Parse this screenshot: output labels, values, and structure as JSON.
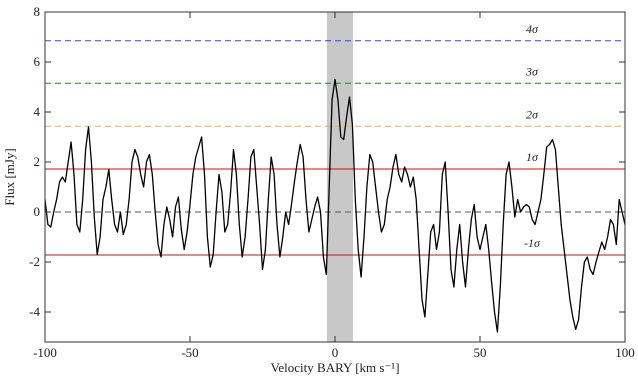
{
  "chart_data": {
    "type": "line",
    "x_label": "Velocity BARY [km s⁻¹]",
    "y_label": "Flux [mJy]",
    "xlim": [
      -100,
      100
    ],
    "ylim": [
      -5.2,
      8
    ],
    "xticks": [
      -100,
      -50,
      0,
      50,
      100
    ],
    "yticks": [
      -4,
      -2,
      0,
      2,
      4,
      6,
      8
    ],
    "shaded_band": {
      "range": [
        -2.8,
        6.2
      ],
      "color": "#c8c8c8"
    },
    "reference_lines": [
      {
        "label": "4σ",
        "value": 6.85,
        "color": "#3b3bff",
        "dashed": true
      },
      {
        "label": "3σ",
        "value": 5.15,
        "color": "#1e8a1e",
        "dashed": true
      },
      {
        "label": "2σ",
        "value": 3.43,
        "color": "#f2b233",
        "dashed": true
      },
      {
        "label": "1σ",
        "value": 1.72,
        "color": "#cc1111",
        "dashed": false
      },
      {
        "value": 0,
        "color": "#555555",
        "dashed": true
      },
      {
        "label": "-1σ",
        "value": -1.72,
        "color": "#cc1111",
        "dashed": false
      }
    ],
    "series": [
      {
        "color": "#000000",
        "x": [
          -100,
          -99,
          -98,
          -97,
          -96,
          -95,
          -94,
          -93,
          -92,
          -91,
          -90,
          -89,
          -88,
          -87,
          -86,
          -85,
          -84,
          -83,
          -82,
          -81,
          -80,
          -79,
          -78,
          -77,
          -76,
          -75,
          -74,
          -73,
          -72,
          -71,
          -70,
          -69,
          -68,
          -67,
          -66,
          -65,
          -64,
          -63,
          -62,
          -61,
          -60,
          -59,
          -58,
          -57,
          -56,
          -55,
          -54,
          -53,
          -52,
          -51,
          -50,
          -49,
          -48,
          -47,
          -46,
          -45,
          -44,
          -43,
          -42,
          -41,
          -40,
          -39,
          -38,
          -37,
          -36,
          -35,
          -34,
          -33,
          -32,
          -31,
          -30,
          -29,
          -28,
          -27,
          -26,
          -25,
          -24,
          -23,
          -22,
          -21,
          -20,
          -19,
          -18,
          -17,
          -16,
          -15,
          -14,
          -13,
          -12,
          -11,
          -10,
          -9,
          -8,
          -7,
          -6,
          -5,
          -4,
          -3,
          -2,
          -1,
          0,
          1,
          2,
          3,
          4,
          5,
          6,
          7,
          8,
          9,
          10,
          11,
          12,
          13,
          14,
          15,
          16,
          17,
          18,
          19,
          20,
          21,
          22,
          23,
          24,
          25,
          26,
          27,
          28,
          29,
          30,
          31,
          32,
          33,
          34,
          35,
          36,
          37,
          38,
          39,
          40,
          41,
          42,
          43,
          44,
          45,
          46,
          47,
          48,
          49,
          50,
          51,
          52,
          53,
          54,
          55,
          56,
          57,
          58,
          59,
          60,
          61,
          62,
          63,
          64,
          65,
          66,
          67,
          68,
          69,
          70,
          71,
          72,
          73,
          74,
          75,
          76,
          77,
          78,
          79,
          80,
          81,
          82,
          83,
          84,
          85,
          86,
          87,
          88,
          89,
          90,
          91,
          92,
          93,
          94,
          95,
          96,
          97,
          98,
          99,
          100
        ],
        "values": [
          0.5,
          -0.5,
          -0.6,
          0,
          0.5,
          1.2,
          1.4,
          1.2,
          2.0,
          2.8,
          1.5,
          -0.5,
          -0.8,
          0.5,
          2.5,
          3.4,
          2.0,
          -0.2,
          -1.7,
          -1.0,
          0.5,
          1.0,
          1.7,
          0.5,
          -0.5,
          -0.8,
          0,
          -0.9,
          -0.5,
          0.5,
          2.0,
          2.5,
          2.2,
          1.5,
          1.0,
          2.0,
          2.3,
          1.5,
          0,
          -1.3,
          -1.8,
          -0.5,
          0.2,
          -0.3,
          -1.0,
          0.2,
          0.6,
          -0.7,
          -1.5,
          -0.8,
          0.3,
          1.5,
          2.2,
          2.6,
          3.0,
          1.5,
          -1.0,
          -2.2,
          -1.7,
          0,
          1.5,
          0.8,
          -0.8,
          -0.5,
          0.8,
          2.5,
          1.5,
          -0.5,
          -1.8,
          -1.0,
          0.5,
          2.2,
          2.5,
          1.0,
          -0.5,
          -2.3,
          -1.5,
          0.5,
          2.2,
          1.5,
          -0.5,
          -1.8,
          -1.0,
          0,
          -0.5,
          0.3,
          1.2,
          2.0,
          2.7,
          2.2,
          0.5,
          -0.8,
          -0.3,
          0.2,
          0.6,
          0,
          -1.8,
          -2.5,
          1.0,
          4.5,
          5.3,
          4.5,
          3.0,
          2.9,
          3.8,
          4.6,
          3.5,
          0.5,
          -1.5,
          -2.6,
          -1.0,
          1.0,
          2.3,
          2.0,
          1.0,
          0,
          -0.8,
          -0.5,
          0.5,
          1.0,
          1.8,
          2.3,
          1.5,
          1.2,
          1.8,
          1.5,
          1.0,
          1.4,
          0.5,
          -1.5,
          -3.5,
          -4.2,
          -2.5,
          -0.8,
          -0.5,
          -1.5,
          -0.8,
          1.5,
          2.0,
          0,
          -2.3,
          -3.0,
          -1.5,
          -0.5,
          -2.0,
          -3.0,
          -1.5,
          -0.3,
          0.3,
          -1.0,
          -1.5,
          -1.0,
          -0.5,
          -1.5,
          -2.8,
          -4.0,
          -4.8,
          -3.0,
          -0.5,
          1.5,
          2.0,
          1.0,
          -0.2,
          0.5,
          0,
          0.2,
          0.3,
          0.2,
          -0.3,
          -0.5,
          0,
          0.5,
          1.5,
          2.6,
          2.7,
          2.9,
          2.5,
          1.0,
          -0.5,
          -1.5,
          -2.5,
          -3.5,
          -4.2,
          -4.7,
          -4.3,
          -3.0,
          -2.0,
          -1.8,
          -2.3,
          -2.5,
          -2.0,
          -1.6,
          -1.2,
          -1.5,
          -1.0,
          -0.3,
          -0.5,
          -1.3,
          0.5,
          0,
          -0.5
        ]
      }
    ]
  }
}
